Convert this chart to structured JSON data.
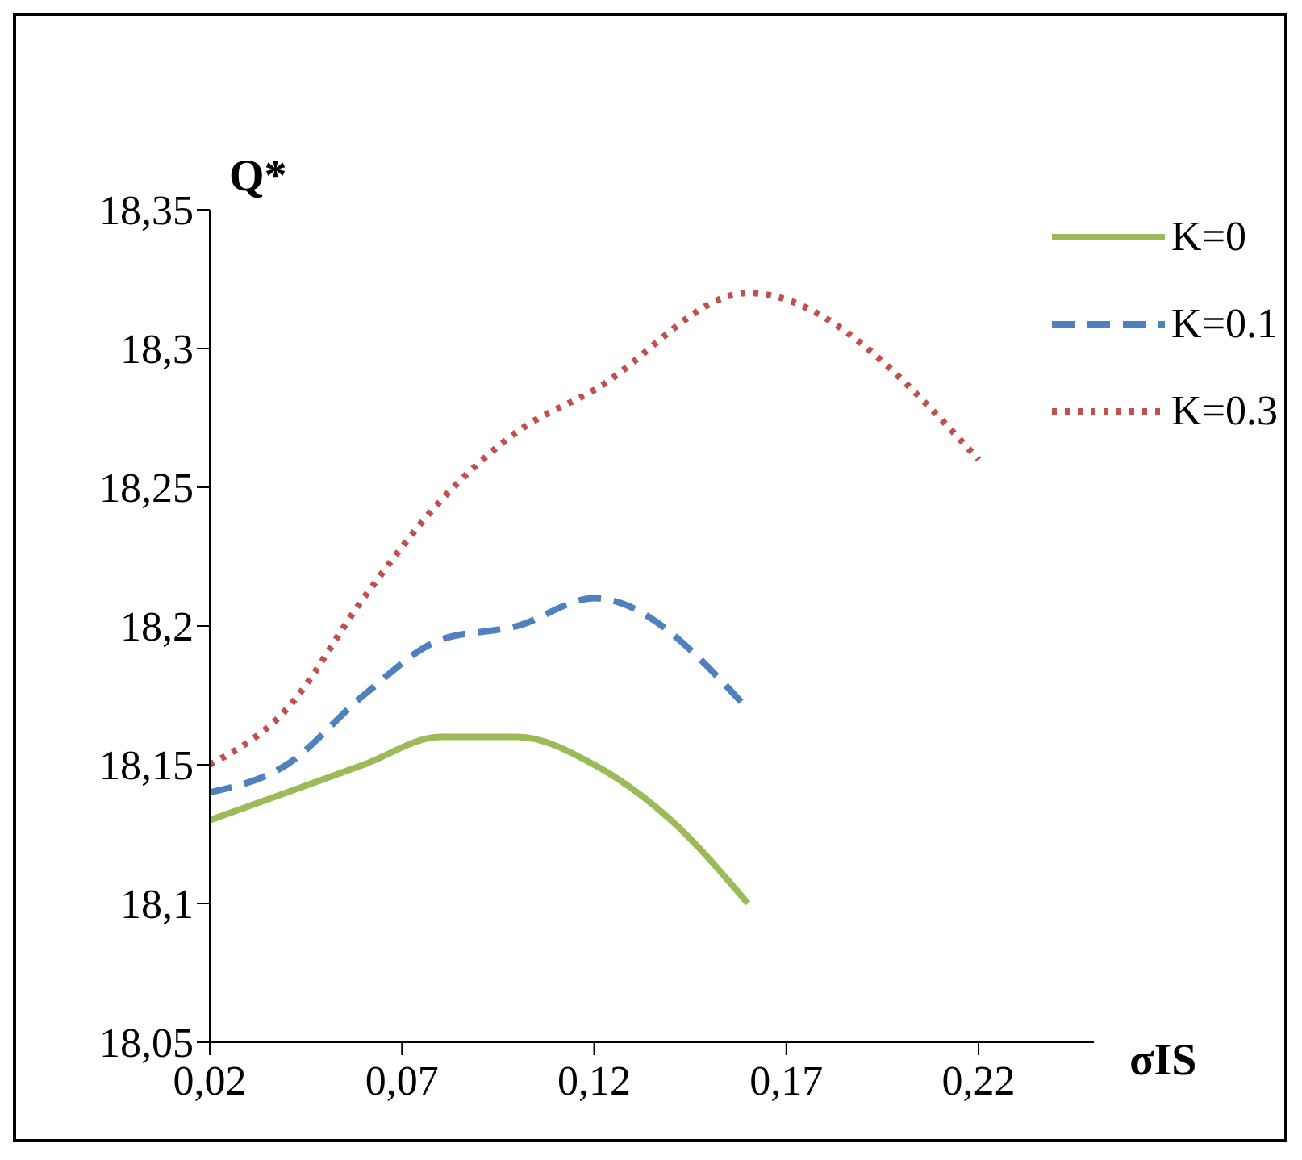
{
  "chart_data": {
    "type": "line",
    "xlabel": "σIS",
    "ylabel": "Q*",
    "xlim": [
      0.02,
      0.25
    ],
    "ylim": [
      18.05,
      18.35
    ],
    "xticks": [
      {
        "value": 0.02,
        "label": "0,02"
      },
      {
        "value": 0.07,
        "label": "0,07"
      },
      {
        "value": 0.12,
        "label": "0,12"
      },
      {
        "value": 0.17,
        "label": "0,17"
      },
      {
        "value": 0.22,
        "label": "0,22"
      }
    ],
    "yticks": [
      {
        "value": 18.05,
        "label": "18,05"
      },
      {
        "value": 18.1,
        "label": "18,1"
      },
      {
        "value": 18.15,
        "label": "18,15"
      },
      {
        "value": 18.2,
        "label": "18,2"
      },
      {
        "value": 18.25,
        "label": "18,25"
      },
      {
        "value": 18.3,
        "label": "18,3"
      },
      {
        "value": 18.35,
        "label": "18,35"
      }
    ],
    "grid": false,
    "legend": "top right",
    "marker": "none",
    "series": [
      {
        "name": "K=0",
        "color": "#9bbb59",
        "line_style": "solid",
        "x": [
          0.02,
          0.04,
          0.06,
          0.08,
          0.09,
          0.1,
          0.12,
          0.14,
          0.16
        ],
        "values": [
          18.13,
          18.14,
          18.15,
          18.16,
          18.16,
          18.16,
          18.15,
          18.13,
          18.1
        ]
      },
      {
        "name": "K=0.1",
        "color": "#4f81bd",
        "line_style": "dashed",
        "x": [
          0.02,
          0.04,
          0.06,
          0.08,
          0.1,
          0.12,
          0.16
        ],
        "values": [
          18.14,
          18.15,
          18.175,
          18.195,
          18.2,
          18.21,
          18.17
        ]
      },
      {
        "name": "K=0.3",
        "color": "#c0504d",
        "line_style": "dotted",
        "x": [
          0.02,
          0.04,
          0.06,
          0.08,
          0.1,
          0.12,
          0.16,
          0.22
        ],
        "values": [
          18.15,
          18.17,
          18.21,
          18.245,
          18.27,
          18.285,
          18.32,
          18.26
        ]
      }
    ]
  }
}
